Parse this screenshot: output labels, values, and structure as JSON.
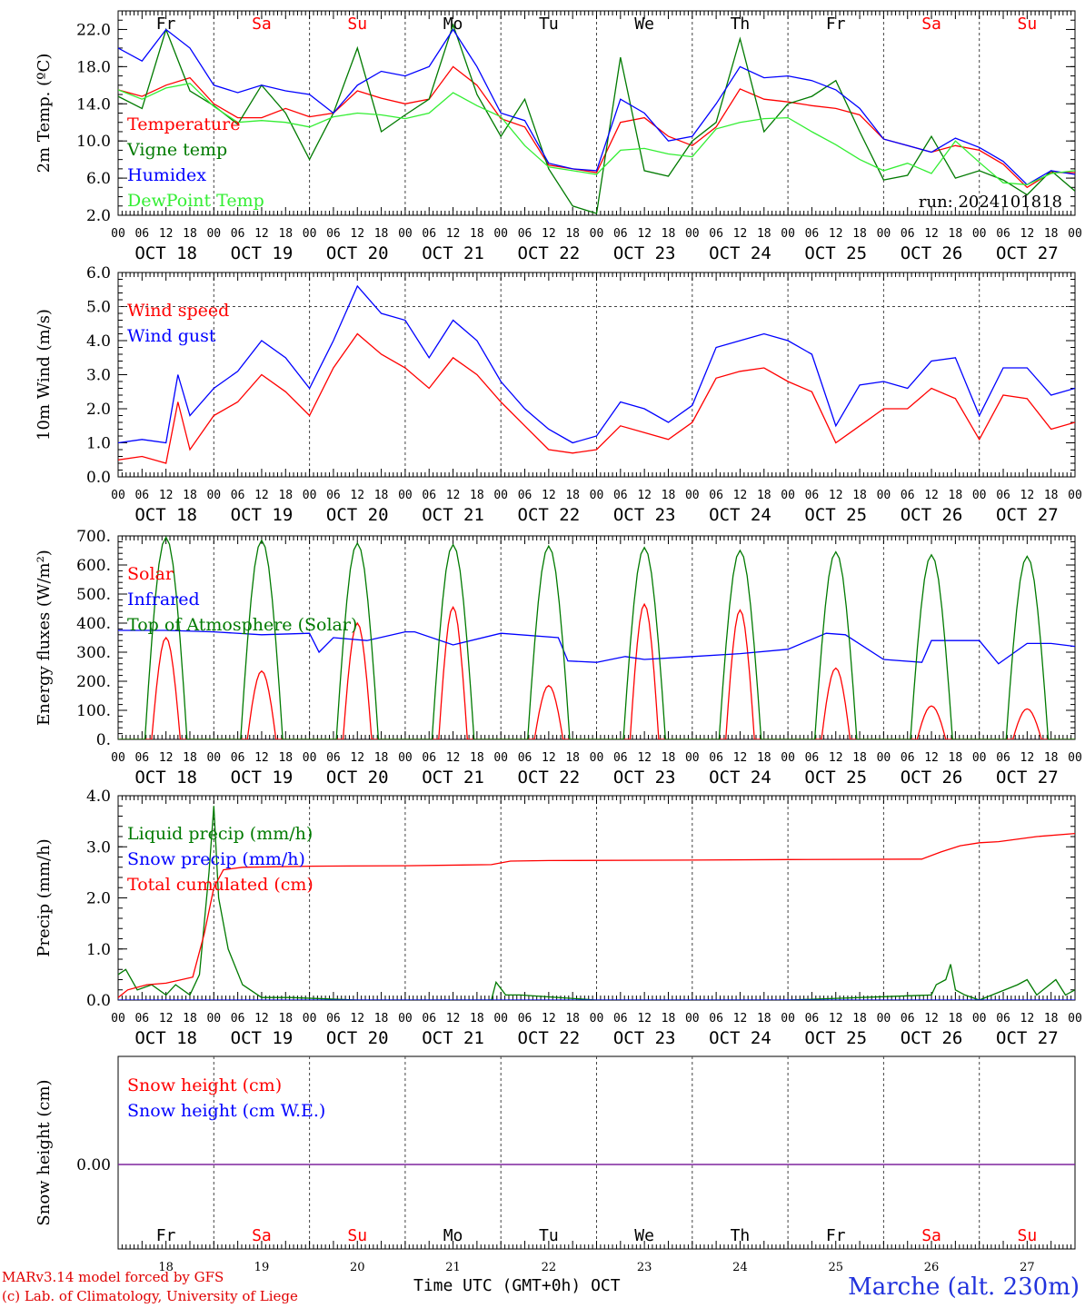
{
  "colors": {
    "red": "#ff0000",
    "darkgreen": "#007a00",
    "blue": "#0000ff",
    "lightgreen": "#33ee33",
    "purple": "#7a1a9a",
    "black": "#000000"
  },
  "footer": {
    "credit_line1": "MARv3.14 model forced by GFS",
    "credit_line2": "(c) Lab. of Climatology, University of Liege",
    "xaxis_label": "Time UTC (GMT+0h) OCT",
    "station": "Marche (alt. 230m)"
  },
  "chart_data": [
    {
      "type": "line",
      "ylabel": "2m Temp. (oC)",
      "ylim": [
        2,
        24
      ],
      "yticks": [
        "2.0",
        "6.0",
        "10.0",
        "14.0",
        "18.0",
        "22.0"
      ],
      "annotation": "run: 2024101818",
      "day_labels": [
        "Fr",
        "Sa",
        "Su",
        "Mo",
        "Tu",
        "We",
        "Th",
        "Fr",
        "Sa",
        "Su"
      ],
      "date_labels": [
        "OCT 18",
        "OCT 19",
        "OCT 20",
        "OCT 21",
        "OCT 22",
        "OCT 23",
        "OCT 24",
        "OCT 25",
        "OCT 26",
        "OCT 27"
      ],
      "hour_labels": [
        "00",
        "06",
        "12",
        "18"
      ],
      "x_days": [
        0,
        10
      ],
      "series": [
        {
          "name": "Temperature",
          "color": "red",
          "x": [
            0,
            0.25,
            0.5,
            0.75,
            1,
            1.25,
            1.5,
            1.75,
            2,
            2.25,
            2.5,
            2.75,
            3,
            3.25,
            3.5,
            3.75,
            4,
            4.25,
            4.5,
            4.75,
            5,
            5.25,
            5.5,
            5.75,
            6,
            6.25,
            6.5,
            6.75,
            7,
            7.25,
            7.5,
            7.75,
            8,
            8.25,
            8.5,
            8.75,
            9,
            9.25,
            9.5,
            9.75,
            10
          ],
          "y": [
            15.5,
            14.8,
            16,
            16.8,
            14,
            12.5,
            12.5,
            13.5,
            12.6,
            13,
            15.4,
            14.6,
            14,
            14.5,
            18,
            16,
            12.4,
            11.5,
            7.4,
            7,
            6.6,
            12,
            12.5,
            10.5,
            9.5,
            11.5,
            15.6,
            14.5,
            14.2,
            13.8,
            13.5,
            12.8,
            10.2,
            9.5,
            8.8,
            9.5,
            9,
            7.5,
            5,
            6.6,
            6.6
          ]
        },
        {
          "name": "Vigne temp",
          "color": "darkgreen",
          "x": [
            0,
            0.25,
            0.5,
            0.75,
            1,
            1.25,
            1.5,
            1.75,
            2,
            2.25,
            2.5,
            2.75,
            3,
            3.25,
            3.5,
            3.75,
            4,
            4.25,
            4.5,
            4.75,
            5,
            5.25,
            5.5,
            5.75,
            6,
            6.25,
            6.5,
            6.75,
            7,
            7.25,
            7.5,
            7.75,
            8,
            8.25,
            8.5,
            8.75,
            9,
            9.25,
            9.5,
            9.75,
            10
          ],
          "y": [
            14.8,
            13.5,
            22,
            15.4,
            13.8,
            11.8,
            16,
            13,
            8,
            13,
            20,
            11,
            12.8,
            14.5,
            22.5,
            15,
            10.5,
            14.5,
            7,
            3,
            2.2,
            19,
            6.8,
            6.2,
            10,
            12,
            21,
            11,
            14,
            14.8,
            16.5,
            11,
            5.8,
            6.3,
            10.5,
            6,
            6.8,
            5.8,
            4.2,
            6.8,
            4.6
          ]
        },
        {
          "name": "Humidex",
          "color": "blue",
          "x": [
            0,
            0.25,
            0.5,
            0.75,
            1,
            1.25,
            1.5,
            1.75,
            2,
            2.25,
            2.5,
            2.75,
            3,
            3.25,
            3.5,
            3.75,
            4,
            4.25,
            4.5,
            4.75,
            5,
            5.25,
            5.5,
            5.75,
            6,
            6.25,
            6.5,
            6.75,
            7,
            7.25,
            7.5,
            7.75,
            8,
            8.25,
            8.5,
            8.75,
            9,
            9.25,
            9.5,
            9.75,
            10
          ],
          "y": [
            20,
            18.6,
            22,
            20,
            16,
            15.2,
            16,
            15.4,
            15,
            13,
            16,
            17.5,
            17,
            18,
            22,
            18,
            13,
            12.2,
            7.6,
            7,
            6.8,
            14.5,
            13,
            10,
            10.5,
            14,
            18,
            16.8,
            17,
            16.5,
            15.5,
            13.5,
            10.2,
            9.5,
            8.8,
            10.3,
            9.3,
            7.8,
            5.3,
            6.8,
            6.4
          ]
        },
        {
          "name": "DewPoint Temp",
          "color": "lightgreen",
          "x": [
            0,
            0.25,
            0.5,
            0.75,
            1,
            1.25,
            1.5,
            1.75,
            2,
            2.25,
            2.5,
            2.75,
            3,
            3.25,
            3.5,
            3.75,
            4,
            4.25,
            4.5,
            4.75,
            5,
            5.25,
            5.5,
            5.75,
            6,
            6.25,
            6.5,
            6.75,
            7,
            7.25,
            7.5,
            7.75,
            8,
            8.25,
            8.5,
            8.75,
            9,
            9.25,
            9.5,
            9.75,
            10
          ],
          "y": [
            15.5,
            14.5,
            15.7,
            16.2,
            13.7,
            12,
            12.2,
            12,
            11.5,
            12.6,
            13,
            12.8,
            12.4,
            13,
            15.2,
            13.8,
            12.6,
            9.5,
            7.2,
            6.8,
            6.4,
            9,
            9.2,
            8.6,
            8.3,
            11.3,
            12,
            12.4,
            12.5,
            11,
            9.6,
            8,
            6.8,
            7.6,
            6.5,
            10,
            7.7,
            5.5,
            5.3,
            6.5,
            6.8
          ]
        }
      ]
    },
    {
      "type": "line",
      "ylabel": "10m Wind (m/s)",
      "ylim": [
        0,
        6
      ],
      "yticks": [
        "0.0",
        "1.0",
        "2.0",
        "3.0",
        "4.0",
        "5.0",
        "6.0"
      ],
      "dashed_ref": 5,
      "date_labels": [
        "OCT 18",
        "OCT 19",
        "OCT 20",
        "OCT 21",
        "OCT 22",
        "OCT 23",
        "OCT 24",
        "OCT 25",
        "OCT 26",
        "OCT 27"
      ],
      "hour_labels": [
        "00",
        "06",
        "12",
        "18"
      ],
      "x_days": [
        0,
        10
      ],
      "series": [
        {
          "name": "Wind speed",
          "color": "red",
          "x": [
            0,
            0.25,
            0.5,
            0.625,
            0.75,
            1,
            1.25,
            1.5,
            1.75,
            2,
            2.25,
            2.5,
            2.75,
            3,
            3.25,
            3.5,
            3.75,
            4,
            4.25,
            4.5,
            4.75,
            5,
            5.25,
            5.5,
            5.75,
            6,
            6.25,
            6.5,
            6.75,
            7,
            7.25,
            7.5,
            7.75,
            8,
            8.25,
            8.5,
            8.75,
            9,
            9.25,
            9.5,
            9.75,
            10
          ],
          "y": [
            0.5,
            0.6,
            0.4,
            2.2,
            0.8,
            1.8,
            2.2,
            3,
            2.5,
            1.8,
            3.2,
            4.2,
            3.6,
            3.2,
            2.6,
            3.5,
            3,
            2.2,
            1.5,
            0.8,
            0.7,
            0.8,
            1.5,
            1.3,
            1.1,
            1.6,
            2.9,
            3.1,
            3.2,
            2.8,
            2.5,
            1,
            1.5,
            2,
            2,
            2.6,
            2.3,
            1.1,
            2.4,
            2.3,
            1.4,
            1.6
          ]
        },
        {
          "name": "Wind gust",
          "color": "blue",
          "x": [
            0,
            0.25,
            0.5,
            0.625,
            0.75,
            1,
            1.25,
            1.5,
            1.75,
            2,
            2.25,
            2.5,
            2.75,
            3,
            3.25,
            3.5,
            3.75,
            4,
            4.25,
            4.5,
            4.75,
            5,
            5.25,
            5.5,
            5.75,
            6,
            6.25,
            6.5,
            6.75,
            7,
            7.25,
            7.5,
            7.75,
            8,
            8.25,
            8.5,
            8.75,
            9,
            9.25,
            9.5,
            9.75,
            10
          ],
          "y": [
            1,
            1.1,
            1,
            3,
            1.8,
            2.6,
            3.1,
            4,
            3.5,
            2.6,
            4,
            5.6,
            4.8,
            4.6,
            3.5,
            4.6,
            4,
            2.8,
            2,
            1.4,
            1,
            1.2,
            2.2,
            2,
            1.6,
            2.1,
            3.8,
            4,
            4.2,
            4,
            3.6,
            1.5,
            2.7,
            2.8,
            2.6,
            3.4,
            3.5,
            1.8,
            3.2,
            3.2,
            2.4,
            2.6
          ]
        }
      ]
    },
    {
      "type": "line",
      "ylabel": "Energy fluxes (W/m2)",
      "ylim": [
        0,
        700
      ],
      "yticks": [
        "0.",
        "100.",
        "200.",
        "300.",
        "400.",
        "500.",
        "600.",
        "700."
      ],
      "date_labels": [
        "OCT 18",
        "OCT 19",
        "OCT 20",
        "OCT 21",
        "OCT 22",
        "OCT 23",
        "OCT 24",
        "OCT 25",
        "OCT 26",
        "OCT 27"
      ],
      "hour_labels": [
        "00",
        "06",
        "12",
        "18"
      ],
      "x_days": [
        0,
        10
      ],
      "solar_peaks": [
        350,
        235,
        400,
        455,
        185,
        465,
        445,
        245,
        115,
        105
      ],
      "toa_peaks": [
        695,
        685,
        675,
        670,
        665,
        660,
        650,
        645,
        635,
        630
      ],
      "series": [
        {
          "name": "Solar",
          "color": "red",
          "type": "diurnal"
        },
        {
          "name": "Infrared",
          "color": "blue",
          "x": [
            0,
            0.5,
            1,
            1.5,
            2,
            2.1,
            2.25,
            2.6,
            3,
            3.1,
            3.5,
            4,
            4.6,
            4.7,
            5,
            5.3,
            5.5,
            6,
            6.5,
            7,
            7.4,
            7.6,
            8,
            8.4,
            8.5,
            9,
            9.2,
            9.5,
            9.75,
            10
          ],
          "y": [
            375,
            375,
            370,
            360,
            365,
            300,
            350,
            340,
            370,
            370,
            325,
            365,
            350,
            270,
            265,
            285,
            275,
            285,
            295,
            310,
            365,
            360,
            275,
            265,
            340,
            340,
            260,
            330,
            330,
            320
          ]
        },
        {
          "name": "Top of Atmosphere (Solar)",
          "color": "darkgreen",
          "type": "diurnal"
        }
      ]
    },
    {
      "type": "line",
      "ylabel": "Precip (mm/h)",
      "ylim": [
        0,
        4
      ],
      "yticks": [
        "0.0",
        "1.0",
        "2.0",
        "3.0",
        "4.0"
      ],
      "date_labels": [
        "OCT 18",
        "OCT 19",
        "OCT 20",
        "OCT 21",
        "OCT 22",
        "OCT 23",
        "OCT 24",
        "OCT 25",
        "OCT 26",
        "OCT 27"
      ],
      "hour_labels": [
        "00",
        "06",
        "12",
        "18"
      ],
      "x_days": [
        0,
        10
      ],
      "series": [
        {
          "name": "Liquid precip (mm/h)",
          "color": "darkgreen",
          "x": [
            0,
            0.08,
            0.2,
            0.35,
            0.5,
            0.6,
            0.75,
            0.85,
            0.95,
            1,
            1.05,
            1.15,
            1.3,
            1.5,
            1.8,
            2.5,
            3,
            3.9,
            3.95,
            4.05,
            4.2,
            5,
            6,
            7,
            8.5,
            8.55,
            8.65,
            8.7,
            8.75,
            8.85,
            9,
            9.4,
            9.5,
            9.6,
            9.8,
            9.9,
            10
          ],
          "y": [
            0.5,
            0.6,
            0.2,
            0.3,
            0.1,
            0.3,
            0.1,
            0.5,
            2.5,
            3.8,
            2,
            1,
            0.3,
            0.05,
            0.05,
            0,
            0,
            0,
            0.35,
            0.1,
            0.1,
            0,
            0,
            0,
            0.1,
            0.3,
            0.4,
            0.7,
            0.2,
            0.1,
            0,
            0.3,
            0.4,
            0.1,
            0.4,
            0.1,
            0.2
          ]
        },
        {
          "name": "Snow precip (mm/h)",
          "color": "blue",
          "x": [
            0,
            10
          ],
          "y": [
            0,
            0
          ]
        },
        {
          "name": "Total cumulated (cm)",
          "color": "red",
          "x": [
            0,
            0.1,
            0.3,
            0.5,
            0.78,
            0.9,
            1,
            1.1,
            1.3,
            2,
            3,
            3.9,
            4.1,
            4.5,
            6,
            7,
            8.4,
            8.6,
            8.8,
            9,
            9.2,
            9.6,
            10
          ],
          "y": [
            0.05,
            0.2,
            0.3,
            0.33,
            0.45,
            1.3,
            2.2,
            2.55,
            2.6,
            2.62,
            2.63,
            2.65,
            2.72,
            2.73,
            2.74,
            2.75,
            2.76,
            2.9,
            3.02,
            3.08,
            3.1,
            3.2,
            3.26
          ]
        }
      ]
    },
    {
      "type": "line",
      "ylabel": "Snow height (cm)",
      "yticks": [
        "0.00"
      ],
      "day_labels": [
        "Fr",
        "Sa",
        "Su",
        "Mo",
        "Tu",
        "We",
        "Th",
        "Fr",
        "Sa",
        "Su"
      ],
      "date_numbers": [
        "18",
        "19",
        "20",
        "21",
        "22",
        "23",
        "24",
        "25",
        "26",
        "27"
      ],
      "x_days": [
        0,
        10
      ],
      "series": [
        {
          "name": "Snow height (cm)",
          "color": "red",
          "x": [
            0,
            10
          ],
          "y": [
            0,
            0
          ]
        },
        {
          "name": "Snow height (cm W.E.)",
          "color": "blue",
          "x": [
            0,
            10
          ],
          "y": [
            0,
            0
          ]
        }
      ]
    }
  ]
}
